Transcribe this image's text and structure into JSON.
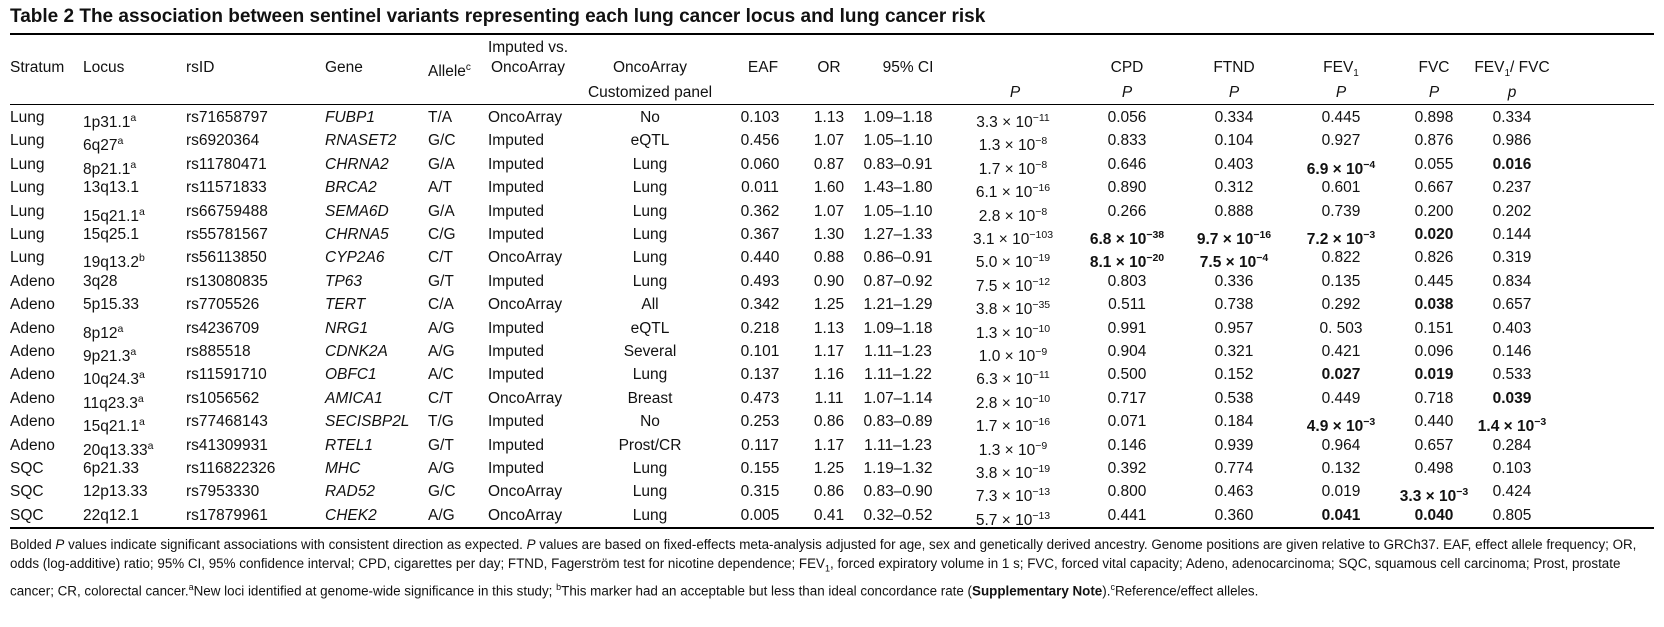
{
  "title": "Table 2  The association between sentinel variants representing each lung cancer locus and lung cancer risk",
  "headers": {
    "stratum": "Stratum",
    "locus": "Locus",
    "rsid": "rsID",
    "gene": "Gene",
    "allele": "Allele",
    "allele_sup": "c",
    "imputed_line1": "Imputed vs.",
    "imputed_line2": "OncoArray",
    "panel_line1": "OncoArray",
    "panel_line2": "Customized panel",
    "eaf": "EAF",
    "or": "OR",
    "ci": "95% CI",
    "p": "P",
    "cpd": "CPD",
    "cpd_p": "P",
    "ftnd": "FTND",
    "ftnd_p": "P",
    "fev1": "FEV",
    "fev1_sub": "1",
    "fev1_p": "P",
    "fvc": "FVC",
    "fvc_p": "P",
    "ratio_a": "FEV",
    "ratio_sub": "1",
    "ratio_b": "/ FVC",
    "ratio_p": "p"
  },
  "rows": [
    {
      "stratum": "Lung",
      "locus": "1p31.1",
      "locus_sup": "a",
      "rsid": "rs71658797",
      "gene": "FUBP1",
      "allele": "T/A",
      "imputed": "OncoArray",
      "panel": "No",
      "eaf": "0.103",
      "or": "1.13",
      "ci": "1.09–1.18",
      "p_base": "3.3 × 10",
      "p_exp": "−11",
      "cpd": "0.056",
      "cpd_exp": "",
      "ftnd": "0.334",
      "ftnd_exp": "",
      "fev1": "0.445",
      "fev1_exp": "",
      "fvc": "0.898",
      "fvc_exp": "",
      "ratio": "0.334",
      "ratio_exp": ""
    },
    {
      "stratum": "Lung",
      "locus": "6q27",
      "locus_sup": "a",
      "rsid": "rs6920364",
      "gene": "RNASET2",
      "allele": "G/C",
      "imputed": "Imputed",
      "panel": "eQTL",
      "eaf": "0.456",
      "or": "1.07",
      "ci": "1.05–1.10",
      "p_base": "1.3 × 10",
      "p_exp": "−8",
      "cpd": "0.833",
      "cpd_exp": "",
      "ftnd": "0.104",
      "ftnd_exp": "",
      "fev1": "0.927",
      "fev1_exp": "",
      "fvc": "0.876",
      "fvc_exp": "",
      "ratio": "0.986",
      "ratio_exp": ""
    },
    {
      "stratum": "Lung",
      "locus": "8p21.1",
      "locus_sup": "a",
      "rsid": "rs11780471",
      "gene": "CHRNA2",
      "allele": "G/A",
      "imputed": "Imputed",
      "panel": "Lung",
      "eaf": "0.060",
      "or": "0.87",
      "ci": "0.83–0.91",
      "p_base": "1.7 × 10",
      "p_exp": "−8",
      "cpd": "0.646",
      "cpd_exp": "",
      "ftnd": "0.403",
      "ftnd_exp": "",
      "fev1": "6.9 × 10",
      "fev1_exp": "−4",
      "fvc": "0.055",
      "fvc_exp": "",
      "ratio": "0.016",
      "ratio_exp": ""
    },
    {
      "stratum": "Lung",
      "locus": "13q13.1",
      "locus_sup": "",
      "rsid": "rs11571833",
      "gene": "BRCA2",
      "allele": "A/T",
      "imputed": "Imputed",
      "panel": "Lung",
      "eaf": "0.011",
      "or": "1.60",
      "ci": "1.43–1.80",
      "p_base": "6.1 × 10",
      "p_exp": "−16",
      "cpd": "0.890",
      "cpd_exp": "",
      "ftnd": "0.312",
      "ftnd_exp": "",
      "fev1": "0.601",
      "fev1_exp": "",
      "fvc": "0.667",
      "fvc_exp": "",
      "ratio": "0.237",
      "ratio_exp": ""
    },
    {
      "stratum": "Lung",
      "locus": "15q21.1",
      "locus_sup": "a",
      "rsid": "rs66759488",
      "gene": "SEMA6D",
      "allele": "G/A",
      "imputed": "Imputed",
      "panel": "Lung",
      "eaf": "0.362",
      "or": "1.07",
      "ci": "1.05–1.10",
      "p_base": "2.8 × 10",
      "p_exp": "−8",
      "cpd": "0.266",
      "cpd_exp": "",
      "ftnd": "0.888",
      "ftnd_exp": "",
      "fev1": "0.739",
      "fev1_exp": "",
      "fvc": "0.200",
      "fvc_exp": "",
      "ratio": "0.202",
      "ratio_exp": ""
    },
    {
      "stratum": "Lung",
      "locus": "15q25.1",
      "locus_sup": "",
      "rsid": "rs55781567",
      "gene": "CHRNA5",
      "allele": "C/G",
      "imputed": "Imputed",
      "panel": "Lung",
      "eaf": "0.367",
      "or": "1.30",
      "ci": "1.27–1.33",
      "p_base": "3.1 × 10",
      "p_exp": "−103",
      "cpd": "6.8 × 10",
      "cpd_exp": "−38",
      "ftnd": "9.7 × 10",
      "ftnd_exp": "−16",
      "fev1": "7.2 × 10",
      "fev1_exp": "−3",
      "fvc": "0.020",
      "fvc_exp": "",
      "ratio": "0.144",
      "ratio_exp": ""
    },
    {
      "stratum": "Lung",
      "locus": "19q13.2",
      "locus_sup": "b",
      "rsid": "rs56113850",
      "gene": "CYP2A6",
      "allele": "C/T",
      "imputed": "OncoArray",
      "panel": "Lung",
      "eaf": "0.440",
      "or": "0.88",
      "ci": "0.86–0.91",
      "p_base": "5.0 × 10",
      "p_exp": "−19",
      "cpd": "8.1 × 10",
      "cpd_exp": "−20",
      "ftnd": "7.5 × 10",
      "ftnd_exp": "−4",
      "fev1": "0.822",
      "fev1_exp": "",
      "fvc": "0.826",
      "fvc_exp": "",
      "ratio": "0.319",
      "ratio_exp": ""
    },
    {
      "stratum": "Adeno",
      "locus": "3q28",
      "locus_sup": "",
      "rsid": "rs13080835",
      "gene": "TP63",
      "allele": "G/T",
      "imputed": "Imputed",
      "panel": "Lung",
      "eaf": "0.493",
      "or": "0.90",
      "ci": "0.87–0.92",
      "p_base": "7.5 × 10",
      "p_exp": "−12",
      "cpd": "0.803",
      "cpd_exp": "",
      "ftnd": "0.336",
      "ftnd_exp": "",
      "fev1": "0.135",
      "fev1_exp": "",
      "fvc": "0.445",
      "fvc_exp": "",
      "ratio": "0.834",
      "ratio_exp": ""
    },
    {
      "stratum": "Adeno",
      "locus": "5p15.33",
      "locus_sup": "",
      "rsid": "rs7705526",
      "gene": "TERT",
      "allele": "C/A",
      "imputed": "OncoArray",
      "panel": "All",
      "eaf": "0.342",
      "or": "1.25",
      "ci": "1.21–1.29",
      "p_base": "3.8 × 10",
      "p_exp": "−35",
      "cpd": "0.511",
      "cpd_exp": "",
      "ftnd": "0.738",
      "ftnd_exp": "",
      "fev1": "0.292",
      "fev1_exp": "",
      "fvc": "0.038",
      "fvc_exp": "",
      "ratio": "0.657",
      "ratio_exp": ""
    },
    {
      "stratum": "Adeno",
      "locus": "8p12",
      "locus_sup": "a",
      "rsid": "rs4236709",
      "gene": "NRG1",
      "allele": "A/G",
      "imputed": "Imputed",
      "panel": "eQTL",
      "eaf": "0.218",
      "or": "1.13",
      "ci": "1.09–1.18",
      "p_base": "1.3 × 10",
      "p_exp": "−10",
      "cpd": "0.991",
      "cpd_exp": "",
      "ftnd": "0.957",
      "ftnd_exp": "",
      "fev1": "0. 503",
      "fev1_exp": "",
      "fvc": "0.151",
      "fvc_exp": "",
      "ratio": "0.403",
      "ratio_exp": ""
    },
    {
      "stratum": "Adeno",
      "locus": "9p21.3",
      "locus_sup": "a",
      "rsid": "rs885518",
      "gene": "CDNK2A",
      "allele": "A/G",
      "imputed": "Imputed",
      "panel": "Several",
      "eaf": "0.101",
      "or": "1.17",
      "ci": "1.11–1.23",
      "p_base": "1.0 × 10",
      "p_exp": "−9",
      "cpd": "0.904",
      "cpd_exp": "",
      "ftnd": "0.321",
      "ftnd_exp": "",
      "fev1": "0.421",
      "fev1_exp": "",
      "fvc": "0.096",
      "fvc_exp": "",
      "ratio": "0.146",
      "ratio_exp": ""
    },
    {
      "stratum": "Adeno",
      "locus": "10q24.3",
      "locus_sup": "a",
      "rsid": "rs11591710",
      "gene": "OBFC1",
      "allele": "A/C",
      "imputed": "Imputed",
      "panel": "Lung",
      "eaf": "0.137",
      "or": "1.16",
      "ci": "1.11–1.22",
      "p_base": "6.3 × 10",
      "p_exp": "−11",
      "cpd": "0.500",
      "cpd_exp": "",
      "ftnd": "0.152",
      "ftnd_exp": "",
      "fev1": "0.027",
      "fev1_exp": "",
      "fvc": "0.019",
      "fvc_exp": "",
      "ratio": "0.533",
      "ratio_exp": ""
    },
    {
      "stratum": "Adeno",
      "locus": "11q23.3",
      "locus_sup": "a",
      "rsid": "rs1056562",
      "gene": "AMICA1",
      "allele": "C/T",
      "imputed": "OncoArray",
      "panel": "Breast",
      "eaf": "0.473",
      "or": "1.11",
      "ci": "1.07–1.14",
      "p_base": "2.8 × 10",
      "p_exp": "−10",
      "cpd": "0.717",
      "cpd_exp": "",
      "ftnd": "0.538",
      "ftnd_exp": "",
      "fev1": "0.449",
      "fev1_exp": "",
      "fvc": "0.718",
      "fvc_exp": "",
      "ratio": "0.039",
      "ratio_exp": ""
    },
    {
      "stratum": "Adeno",
      "locus": "15q21.1",
      "locus_sup": "a",
      "rsid": "rs77468143",
      "gene": "SECISBP2L",
      "allele": "T/G",
      "imputed": "Imputed",
      "panel": "No",
      "eaf": "0.253",
      "or": "0.86",
      "ci": "0.83–0.89",
      "p_base": "1.7 × 10",
      "p_exp": "−16",
      "cpd": "0.071",
      "cpd_exp": "",
      "ftnd": "0.184",
      "ftnd_exp": "",
      "fev1": "4.9 × 10",
      "fev1_exp": "−3",
      "fvc": "0.440",
      "fvc_exp": "",
      "ratio": "1.4 × 10",
      "ratio_exp": "−3"
    },
    {
      "stratum": "Adeno",
      "locus": "20q13.33",
      "locus_sup": "a",
      "rsid": "rs41309931",
      "gene": "RTEL1",
      "allele": "G/T",
      "imputed": "Imputed",
      "panel": "Prost/CR",
      "eaf": "0.117",
      "or": "1.17",
      "ci": "1.11–1.23",
      "p_base": "1.3 × 10",
      "p_exp": "−9",
      "cpd": "0.146",
      "cpd_exp": "",
      "ftnd": "0.939",
      "ftnd_exp": "",
      "fev1": "0.964",
      "fev1_exp": "",
      "fvc": "0.657",
      "fvc_exp": "",
      "ratio": "0.284",
      "ratio_exp": ""
    },
    {
      "stratum": "SQC",
      "locus": "6p21.33",
      "locus_sup": "",
      "rsid": "rs116822326",
      "gene": "MHC",
      "allele": "A/G",
      "imputed": "Imputed",
      "panel": "Lung",
      "eaf": "0.155",
      "or": "1.25",
      "ci": "1.19–1.32",
      "p_base": "3.8 × 10",
      "p_exp": "−19",
      "cpd": "0.392",
      "cpd_exp": "",
      "ftnd": "0.774",
      "ftnd_exp": "",
      "fev1": "0.132",
      "fev1_exp": "",
      "fvc": "0.498",
      "fvc_exp": "",
      "ratio": "0.103",
      "ratio_exp": ""
    },
    {
      "stratum": "SQC",
      "locus": "12p13.33",
      "locus_sup": "",
      "rsid": "rs7953330",
      "gene": "RAD52",
      "allele": "G/C",
      "imputed": "OncoArray",
      "panel": "Lung",
      "eaf": "0.315",
      "or": "0.86",
      "ci": "0.83–0.90",
      "p_base": "7.3 × 10",
      "p_exp": "−13",
      "cpd": "0.800",
      "cpd_exp": "",
      "ftnd": "0.463",
      "ftnd_exp": "",
      "fev1": "0.019",
      "fev1_exp": "",
      "fvc": "3.3 × 10",
      "fvc_exp": "−3",
      "ratio": "0.424",
      "ratio_exp": ""
    },
    {
      "stratum": "SQC",
      "locus": "22q12.1",
      "locus_sup": "",
      "rsid": "rs17879961",
      "gene": "CHEK2",
      "allele": "A/G",
      "imputed": "OncoArray",
      "panel": "Lung",
      "eaf": "0.005",
      "or": "0.41",
      "ci": "0.32–0.52",
      "p_base": "5.7 × 10",
      "p_exp": "−13",
      "cpd": "0.441",
      "cpd_exp": "",
      "ftnd": "0.360",
      "ftnd_exp": "",
      "fev1": "0.041",
      "fev1_exp": "",
      "fvc": "0.040",
      "fvc_exp": "",
      "ratio": "0.805",
      "ratio_exp": ""
    }
  ],
  "bold": {
    "cpd": [
      5,
      6
    ],
    "ftnd": [
      5,
      6
    ],
    "fev1": [
      2,
      5,
      11,
      13,
      17
    ],
    "fvc": [
      5,
      8,
      11,
      16,
      17
    ],
    "ratio": [
      2,
      12,
      13
    ]
  },
  "footnote": {
    "t01": "Bolded ",
    "t02": "P",
    "t03": " values indicate significant associations with consistent direction as expected. ",
    "t04": "P",
    "t05": " values are based on fixed-effects meta-analysis adjusted for age, sex and genetically derived ancestry. Genome positions are given relative to GRCh37. EAF, effect allele frequency; OR, odds (log-additive) ratio; 95% CI, 95% confidence interval; CPD, cigarettes per day; FTND, Fagerström test for nicotine dependence; FEV",
    "t06": "1",
    "t07": ", forced expiratory volume in 1 s; FVC, forced vital capacity; Adeno, adenocarcinoma; SQC, squamous cell carcinoma; Prost, prostate cancer; CR, colorectal cancer.",
    "t08": "a",
    "t09": "New loci identified at genome-wide significance in this study; ",
    "t10": "b",
    "t11": "This marker had an acceptable but less than ideal concordance rate (",
    "t12": "Supplementary Note",
    "t13": ").",
    "t14": "c",
    "t15": "Reference/effect alleles."
  }
}
